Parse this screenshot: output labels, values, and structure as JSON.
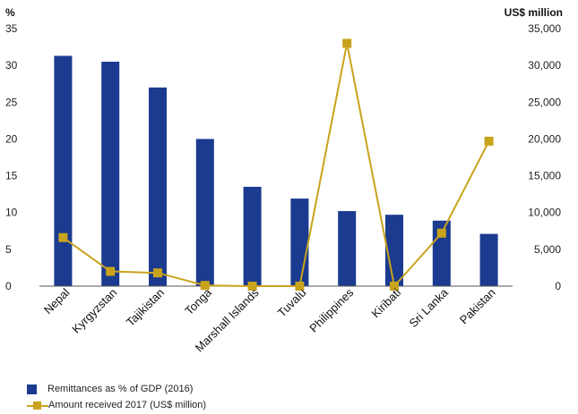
{
  "chart_data": {
    "type": "bar+line",
    "categories": [
      "Nepal",
      "Kyrgyzstan",
      "Tajikistan",
      "Tonga",
      "Marshall Islands",
      "Tuvalu",
      "Philippines",
      "Kiribati",
      "Sri Lanka",
      "Pakistan"
    ],
    "series": [
      {
        "name": "Remittances as % of GDP (2016)",
        "type": "bar",
        "axis": "left",
        "color": "#1a3b8f",
        "values": [
          31.3,
          30.5,
          27.0,
          20.0,
          13.5,
          11.9,
          10.2,
          9.7,
          8.9,
          7.1
        ]
      },
      {
        "name": "Amount received 2017 (US$ million)",
        "type": "line",
        "axis": "right",
        "color": "#c9a31b",
        "values": [
          6600,
          2000,
          1800,
          100,
          0,
          0,
          33000,
          0,
          7200,
          19700
        ]
      }
    ],
    "left_axis": {
      "label": "%",
      "min": 0,
      "max": 35,
      "ticks": [
        "0",
        "5",
        "10",
        "15",
        "20",
        "25",
        "30",
        "35"
      ]
    },
    "right_axis": {
      "label": "US$ million",
      "min": 0,
      "max": 35000,
      "ticks": [
        "0",
        "5,000",
        "10,000",
        "15,000",
        "20,000",
        "25,000",
        "30,000",
        "35,000"
      ]
    },
    "grid": false,
    "legend_position": "bottom-left"
  }
}
